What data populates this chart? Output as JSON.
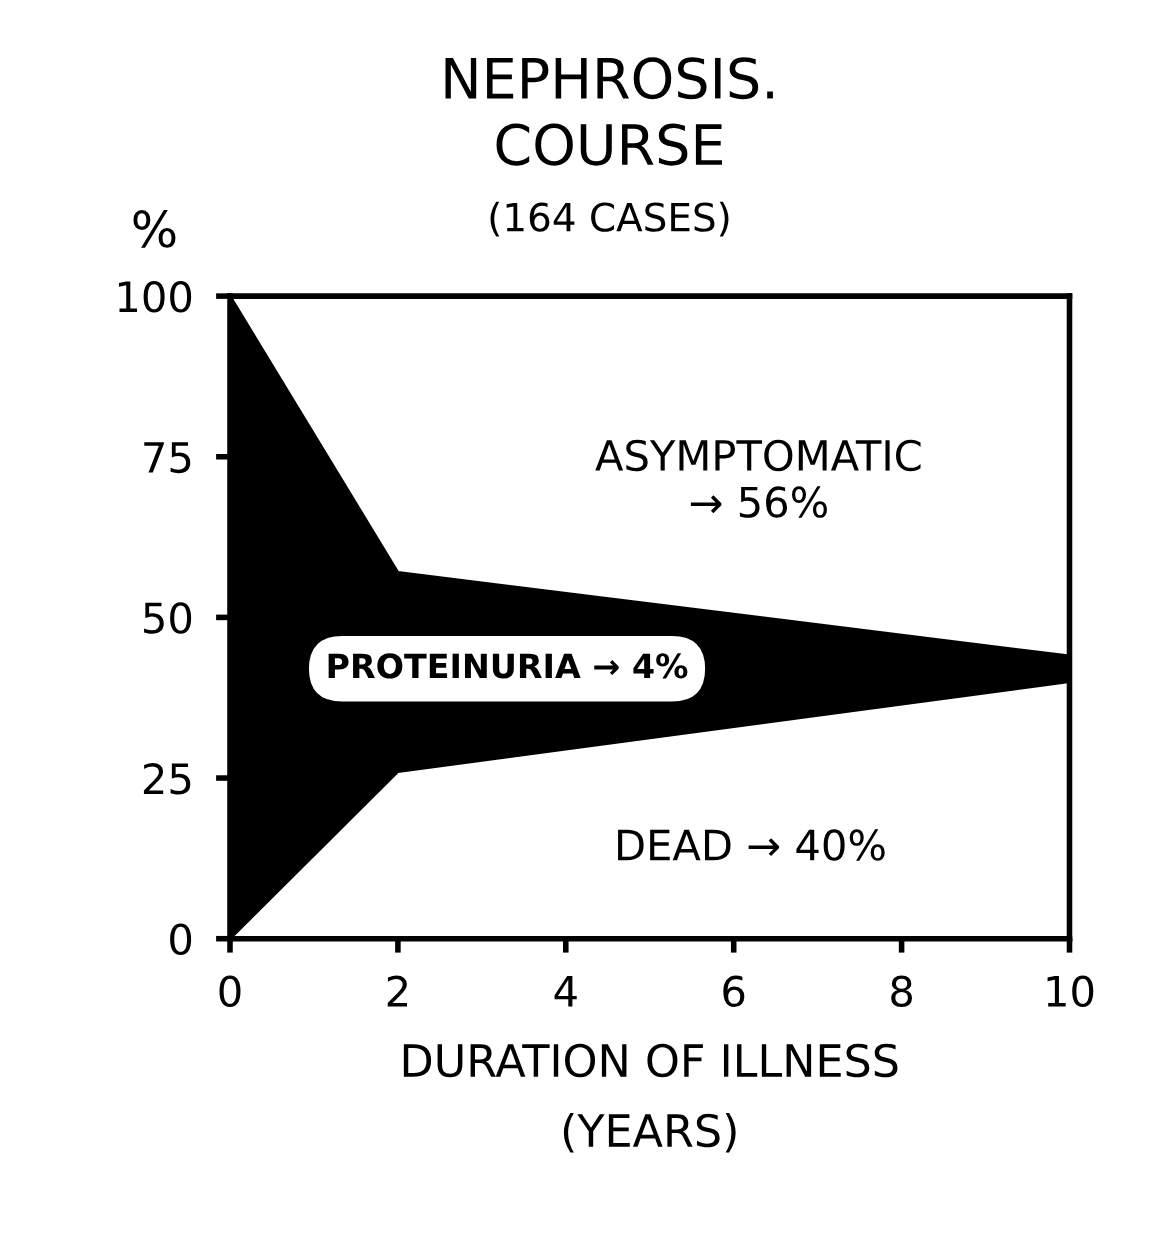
{
  "chart_data": {
    "type": "area",
    "stacked": true,
    "title": "NEPHROSIS.\nCOURSE",
    "subtitle": "(164 CASES)",
    "xlabel": "DURATION OF ILLNESS\n(YEARS)",
    "ylabel": "%",
    "x": [
      0,
      2,
      10
    ],
    "series": [
      {
        "color": "#ffffff",
        "values": [
          0,
          26,
          40
        ]
      },
      {
        "color": "#000000",
        "values": [
          100,
          31,
          4
        ]
      },
      {
        "color": "#ffffff",
        "values": [
          0,
          43,
          56
        ]
      }
    ],
    "xlim": [
      0,
      10
    ],
    "ylim": [
      0,
      100
    ],
    "xticks": [
      0,
      2,
      4,
      6,
      8,
      10
    ],
    "yticks": [
      0,
      25,
      50,
      75,
      100
    ],
    "grid": false,
    "legend": false,
    "annotations": [
      "ASYMPTOMATIC\n→ 56%",
      "PROTEINURIA → 4%",
      "DEAD → 40%"
    ]
  }
}
